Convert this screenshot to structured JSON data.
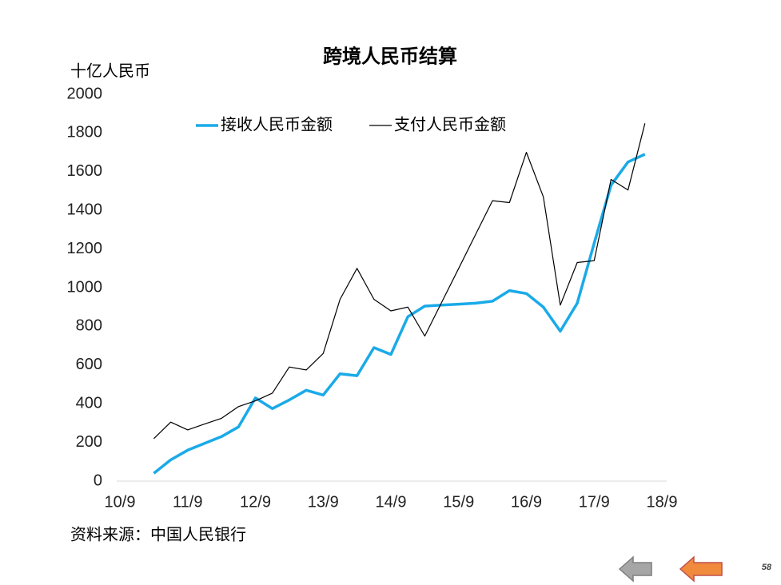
{
  "chart_data": {
    "type": "line",
    "title": "跨境人民币结算",
    "y_label": "十亿人民币",
    "source": "资料来源：中国人民银行",
    "page_number": "58",
    "categories": [
      "10/9",
      null,
      null,
      null,
      "11/9",
      null,
      null,
      null,
      "12/9",
      null,
      null,
      null,
      "13/9",
      null,
      null,
      null,
      "14/9",
      null,
      null,
      null,
      "15/9",
      null,
      null,
      null,
      "16/9",
      null,
      null,
      null,
      "17/9",
      null,
      null,
      null,
      "18/9"
    ],
    "series": [
      {
        "name": "接收人民币金额",
        "color": "#1aaae8",
        "width": 3.5,
        "values": [
          null,
          null,
          40,
          110,
          160,
          195,
          230,
          280,
          430,
          375,
          420,
          470,
          445,
          555,
          545,
          690,
          655,
          850,
          905,
          910,
          915,
          920,
          930,
          985,
          970,
          900,
          775,
          920,
          1230,
          1530,
          1650,
          1690,
          null
        ]
      },
      {
        "name": "支付人民币金额",
        "color": "#000000",
        "width": 1.2,
        "values": [
          null,
          null,
          220,
          305,
          265,
          295,
          325,
          385,
          415,
          455,
          590,
          575,
          660,
          940,
          1100,
          940,
          880,
          900,
          750,
          925,
          1100,
          1275,
          1450,
          1440,
          1700,
          1470,
          910,
          1130,
          1140,
          1560,
          1505,
          1850,
          null
        ]
      }
    ],
    "ylim": [
      0,
      2000
    ],
    "yticks": [
      0,
      200,
      400,
      600,
      800,
      1000,
      1200,
      1400,
      1600,
      1800,
      2000
    ],
    "grid": false
  }
}
